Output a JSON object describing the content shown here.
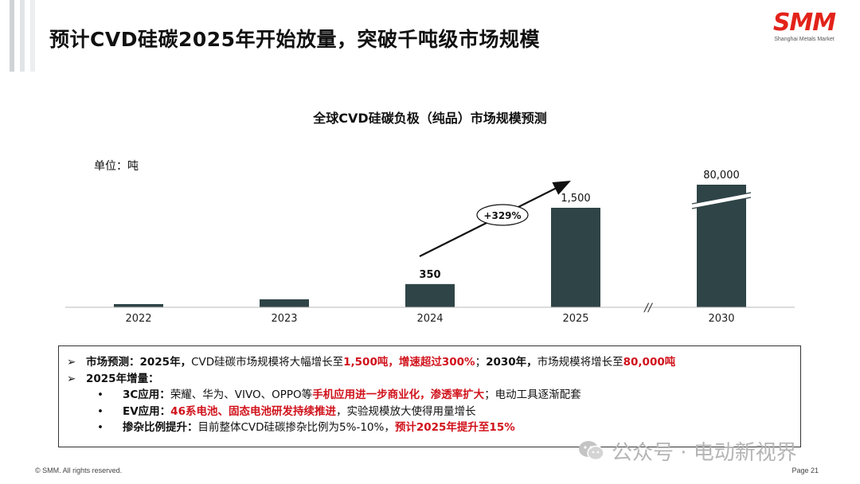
{
  "page_title": "预计CVD硅碳2025年开始放量，突破千吨级市场规模",
  "logo": {
    "text": "SMM",
    "subtitle": "Shanghai Metals Market"
  },
  "chart_data": {
    "type": "bar",
    "title": "全球CVD硅碳负极（纯品）市场规模预测",
    "unit_label": "单位：吨",
    "categories": [
      "2022",
      "2023",
      "2024",
      "2025",
      "2030"
    ],
    "values": [
      25,
      120,
      350,
      1500,
      80000
    ],
    "data_labels": [
      "",
      "",
      "350",
      "1,500",
      "80,000"
    ],
    "growth_annotation": "+329%",
    "axis_break": "//",
    "grid": false,
    "legend": "none",
    "bar_color": "#2f4447"
  },
  "info_box": {
    "line1": {
      "marker": "➢",
      "label": "市场预测：",
      "seg1_bold": "2025年，",
      "seg2": "CVD硅碳市场规模将大幅增长至",
      "seg3_red": "1,500吨，增速超过300%",
      "seg4": "；",
      "seg5_bold": "2030年，",
      "seg6": "市场规模将增长至",
      "seg7_red": "80,000吨"
    },
    "line2": {
      "marker": "➢",
      "label": "2025年增量："
    },
    "line3": {
      "marker": "•",
      "label": "3C应用：",
      "seg1": "荣耀、华为、VIVO、OPPO等",
      "seg2_red": "手机应用进一步商业化，渗透率扩大",
      "seg3": "；电动工具逐渐配套"
    },
    "line4": {
      "marker": "•",
      "label": "EV应用：",
      "seg1_red": "46系电池、固态电池研发持续推进",
      "seg2": "，实验规模放大使得用量增长"
    },
    "line5": {
      "marker": "•",
      "label": "掺杂比例提升：",
      "seg1": "目前整体CVD硅碳掺杂比例为5%-10%，",
      "seg2_red": "预计2025年提升至15%"
    }
  },
  "footer": {
    "copyright": "© SMM. All rights reserved.",
    "page": "Page 21"
  },
  "watermark": "公众号 · 电动新视界"
}
